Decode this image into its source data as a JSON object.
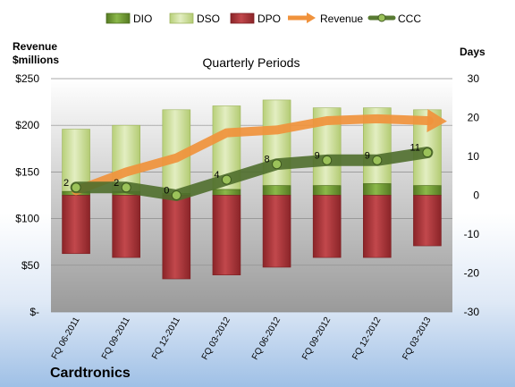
{
  "chart_data": {
    "type": "bar",
    "title": "Quarterly Periods",
    "left_axis_label_line1": "Revenue",
    "left_axis_label_line2": "$millions",
    "right_axis_label": "Days",
    "company": "Cardtronics",
    "categories": [
      "FQ 06-2011",
      "FQ 09-2011",
      "FQ 12-2011",
      "FQ 03-2012",
      "FQ 06-2012",
      "FQ 09-2012",
      "FQ 12-2012",
      "FQ 03-2013"
    ],
    "left_ticks": [
      "$-",
      "$50",
      "$100",
      "$150",
      "$200",
      "$250"
    ],
    "right_ticks": [
      "-30",
      "-20",
      "-10",
      "0",
      "10",
      "20",
      "30"
    ],
    "left_ylim": [
      0,
      250
    ],
    "right_ylim": [
      -30,
      30
    ],
    "legend_position": "top",
    "legend": [
      "DIO",
      "DSO",
      "DPO",
      "Revenue",
      "CCC"
    ],
    "series": [
      {
        "name": "DIO",
        "axis": "right",
        "type": "stacked-bar",
        "color": "#6e9b2e",
        "values": [
          1,
          1,
          0.5,
          1.5,
          2.5,
          2.5,
          3,
          2.5
        ]
      },
      {
        "name": "DSO",
        "axis": "right",
        "type": "stacked-bar",
        "color": "#cfe0a3",
        "values": [
          16,
          17,
          21.5,
          21.5,
          22,
          20,
          19.5,
          19.5
        ]
      },
      {
        "name": "DPO",
        "axis": "right",
        "type": "negative-bar",
        "color": "#a8353a",
        "values": [
          -15,
          -16,
          -21.5,
          -20.5,
          -18.5,
          -16,
          -16,
          -13
        ]
      },
      {
        "name": "Revenue",
        "axis": "left",
        "type": "arrow-line",
        "color": "#f0923c",
        "values": [
          130,
          150,
          165,
          192,
          195,
          205,
          207,
          205
        ]
      },
      {
        "name": "CCC",
        "axis": "right",
        "type": "line",
        "color": "#587a33",
        "values": [
          2,
          2,
          0,
          4,
          8,
          9,
          9,
          11
        ],
        "labels": [
          "2",
          "2",
          "0",
          "4",
          "8",
          "9",
          "9",
          "11"
        ]
      }
    ],
    "grid": true
  }
}
